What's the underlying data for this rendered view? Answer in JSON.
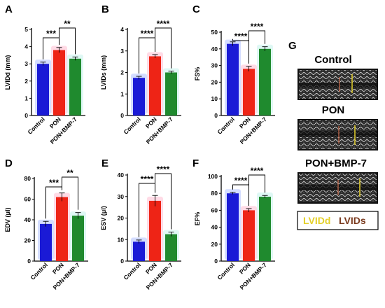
{
  "chart_data": [
    {
      "panel": "A",
      "type": "bar",
      "categories": [
        "Control",
        "PON",
        "PON+BMP-7"
      ],
      "values": [
        3.0,
        3.8,
        3.3
      ],
      "errors": [
        0.1,
        0.15,
        0.1
      ],
      "ylabel": "LVIDd (mm)",
      "ylim": [
        0,
        5
      ],
      "yticks": [
        0,
        1,
        2,
        3,
        4,
        5
      ],
      "significance": [
        {
          "from": 0,
          "to": 1,
          "label": "***"
        },
        {
          "from": 1,
          "to": 2,
          "label": "**"
        }
      ]
    },
    {
      "panel": "B",
      "type": "bar",
      "categories": [
        "Control",
        "PON",
        "PON+BMP-7"
      ],
      "values": [
        1.75,
        2.75,
        2.0
      ],
      "errors": [
        0.07,
        0.08,
        0.06
      ],
      "ylabel": "LVIDs (mm)",
      "ylim": [
        0,
        4
      ],
      "yticks": [
        0,
        1,
        2,
        3,
        4
      ],
      "significance": [
        {
          "from": 0,
          "to": 1,
          "label": "****"
        },
        {
          "from": 1,
          "to": 2,
          "label": "****"
        }
      ]
    },
    {
      "panel": "C",
      "type": "bar",
      "categories": [
        "Control",
        "PON",
        "PON+BMP-7"
      ],
      "values": [
        43,
        28,
        40
      ],
      "errors": [
        1.2,
        1.5,
        1.3
      ],
      "ylabel": "FS%",
      "ylim": [
        0,
        50
      ],
      "yticks": [
        0,
        10,
        20,
        30,
        40,
        50
      ],
      "significance": [
        {
          "from": 0,
          "to": 1,
          "label": "****"
        },
        {
          "from": 1,
          "to": 2,
          "label": "****"
        }
      ]
    },
    {
      "panel": "D",
      "type": "bar",
      "categories": [
        "Control",
        "PON",
        "PON+BMP-7"
      ],
      "values": [
        36,
        62,
        44
      ],
      "errors": [
        2.5,
        4,
        3
      ],
      "ylabel": "EDV (μl)",
      "ylim": [
        0,
        80
      ],
      "yticks": [
        0,
        20,
        40,
        60,
        80
      ],
      "significance": [
        {
          "from": 0,
          "to": 1,
          "label": "***"
        },
        {
          "from": 1,
          "to": 2,
          "label": "**"
        }
      ]
    },
    {
      "panel": "E",
      "type": "bar",
      "categories": [
        "Control",
        "PON",
        "PON+BMP-7"
      ],
      "values": [
        9,
        28,
        12.5
      ],
      "errors": [
        0.8,
        2.5,
        1.0
      ],
      "ylabel": "ESV (μl)",
      "ylim": [
        0,
        40
      ],
      "yticks": [
        0,
        10,
        20,
        30,
        40
      ],
      "significance": [
        {
          "from": 0,
          "to": 1,
          "label": "****"
        },
        {
          "from": 1,
          "to": 2,
          "label": "****"
        }
      ]
    },
    {
      "panel": "F",
      "type": "bar",
      "categories": [
        "Control",
        "PON",
        "PON+BMP-7"
      ],
      "values": [
        80,
        60,
        76
      ],
      "errors": [
        1.2,
        2.0,
        1.5
      ],
      "ylabel": "EF%",
      "ylim": [
        0,
        100
      ],
      "yticks": [
        0,
        20,
        40,
        60,
        80,
        100
      ],
      "significance": [
        {
          "from": 0,
          "to": 1,
          "label": "****"
        },
        {
          "from": 1,
          "to": 2,
          "label": "****"
        }
      ]
    }
  ],
  "colors": {
    "bars": [
      "#1a1ad6",
      "#ee2416",
      "#1f8a2e"
    ],
    "glow": [
      "#9fb4ff",
      "#ffb0c8",
      "#b8f0e8"
    ],
    "lvidd": "#e4d02a",
    "lvids": "#7a3a1e"
  },
  "echo": {
    "letter": "G",
    "titles": [
      "Control",
      "PON",
      "PON+BMP-7"
    ],
    "legend_lvidd": "LVIDd",
    "legend_lvids": "LVIDs"
  }
}
